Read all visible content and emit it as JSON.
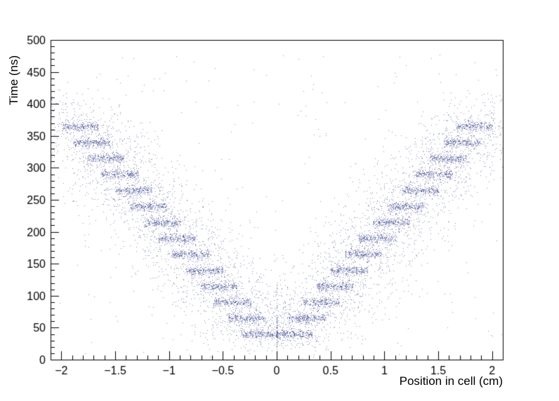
{
  "chart_data": {
    "type": "scatter",
    "title": "",
    "xlabel": "Position in cell (cm)",
    "ylabel": "Time (ns)",
    "xlim": [
      -2.1,
      2.1
    ],
    "ylim": [
      0,
      500
    ],
    "x_major_ticks": [
      -2,
      -1.5,
      -1,
      -0.5,
      0,
      0.5,
      1,
      1.5,
      2
    ],
    "x_minor_step": 0.1,
    "y_major_ticks": [
      0,
      50,
      100,
      150,
      200,
      250,
      300,
      350,
      400,
      450,
      500
    ],
    "y_minor_step": 10,
    "grid": false,
    "legend": "none",
    "marker_color": "#232e82",
    "frame_color": "#000000",
    "description": "V-shaped drift-time vs position scatter: dense horizontal band clusters at ~25 ns steps, mirrored left/right, with diffuse halo and sparse background noise",
    "bands": [
      {
        "time": 40,
        "abs_x": 0.16
      },
      {
        "time": 65,
        "abs_x": 0.28
      },
      {
        "time": 90,
        "abs_x": 0.41
      },
      {
        "time": 115,
        "abs_x": 0.54
      },
      {
        "time": 140,
        "abs_x": 0.67
      },
      {
        "time": 165,
        "abs_x": 0.8
      },
      {
        "time": 190,
        "abs_x": 0.93
      },
      {
        "time": 215,
        "abs_x": 1.06
      },
      {
        "time": 240,
        "abs_x": 1.19
      },
      {
        "time": 265,
        "abs_x": 1.33
      },
      {
        "time": 290,
        "abs_x": 1.46
      },
      {
        "time": 315,
        "abs_x": 1.59
      },
      {
        "time": 340,
        "abs_x": 1.72
      },
      {
        "time": 365,
        "abs_x": 1.83
      }
    ],
    "band_halfwidth_cm": 0.17,
    "band_sigma_t_ns": 3.5,
    "band_points_per_side": 230,
    "halo_points_per_side": 110,
    "halo_x_sigma_cm": 0.28,
    "halo_t_sigma_ns": 14,
    "arm_points": 1900,
    "arm_t_range": [
      25,
      420
    ],
    "arm_x_sigma_cm": 0.17,
    "arm_slope_cm_per_ns": 0.0052,
    "arm_x0_cm": 0.15,
    "arm_t0_ns": 40,
    "noise_points": 280,
    "noise_t_max": 480,
    "seed": 42
  }
}
